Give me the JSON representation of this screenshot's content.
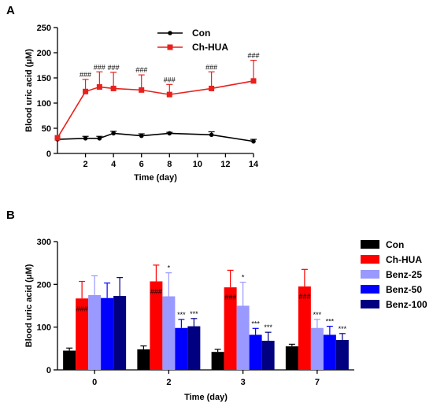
{
  "chart_data": [
    {
      "panel": "A",
      "type": "line",
      "xlabel": "Time (day)",
      "ylabel": "Blood uric acid (μM)",
      "xlim": [
        0,
        14
      ],
      "ylim": [
        0,
        250
      ],
      "xticks": [
        2,
        4,
        6,
        8,
        10,
        12,
        14
      ],
      "yticks": [
        0,
        50,
        100,
        150,
        200,
        250
      ],
      "grid": false,
      "legend_position": "top-center",
      "series": [
        {
          "name": "Con",
          "color": "#000000",
          "marker": "circle",
          "x": [
            0,
            2,
            3,
            4,
            6,
            8,
            11,
            14
          ],
          "y": [
            28,
            30,
            30,
            40,
            35,
            40,
            37,
            24
          ],
          "error": [
            0,
            4,
            4,
            4,
            4,
            2,
            6,
            4
          ]
        },
        {
          "name": "Ch-HUA",
          "color": "#e8211d",
          "marker": "square",
          "x": [
            0,
            2,
            3,
            4,
            6,
            8,
            11,
            14
          ],
          "y": [
            31,
            123,
            132,
            129,
            126,
            117,
            129,
            144
          ],
          "error": [
            0,
            24,
            30,
            32,
            30,
            20,
            33,
            41
          ],
          "annotations": [
            "",
            "###",
            "###",
            "###",
            "###",
            "###",
            "###",
            "###"
          ]
        }
      ]
    },
    {
      "panel": "B",
      "type": "bar",
      "xlabel": "Time (day)",
      "ylabel": "Blood uric acid (μM)",
      "categories": [
        "0",
        "2",
        "3",
        "7"
      ],
      "ylim": [
        0,
        300
      ],
      "yticks": [
        0,
        100,
        200,
        300
      ],
      "grid": false,
      "legend_position": "right",
      "series": [
        {
          "name": "Con",
          "color": "#000000",
          "values": [
            45,
            48,
            42,
            55
          ],
          "error": [
            6,
            8,
            6,
            5
          ],
          "annotations": [
            "",
            "",
            "",
            ""
          ]
        },
        {
          "name": "Ch-HUA",
          "color": "#ff0000",
          "values": [
            167,
            207,
            193,
            195
          ],
          "error": [
            40,
            38,
            40,
            40
          ],
          "annotations": [
            "###",
            "###",
            "###",
            "###"
          ]
        },
        {
          "name": "Benz-25",
          "color": "#9999ff",
          "values": [
            175,
            172,
            150,
            98
          ],
          "error": [
            45,
            55,
            55,
            20
          ],
          "annotations": [
            "",
            "*",
            "*",
            "***"
          ]
        },
        {
          "name": "Benz-50",
          "color": "#0000ff",
          "values": [
            168,
            98,
            82,
            82
          ],
          "error": [
            35,
            20,
            15,
            20
          ],
          "annotations": [
            "",
            "***",
            "***",
            "***"
          ]
        },
        {
          "name": "Benz-100",
          "color": "#000080",
          "values": [
            173,
            102,
            68,
            70
          ],
          "error": [
            43,
            18,
            20,
            15
          ],
          "annotations": [
            "",
            "***",
            "***",
            "***"
          ]
        }
      ]
    }
  ]
}
